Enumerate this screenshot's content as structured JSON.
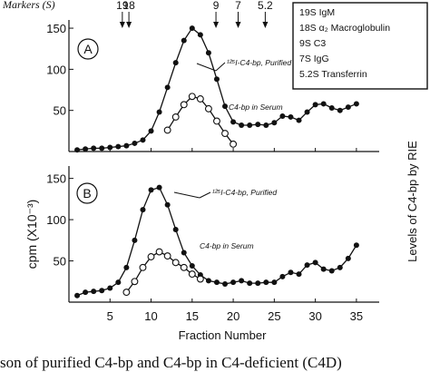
{
  "markers": {
    "title": "Markers (S)",
    "items": [
      {
        "label": "19",
        "x": 6.5
      },
      {
        "label": "18",
        "x": 7.3
      },
      {
        "label": "9",
        "x": 17.9
      },
      {
        "label": "7",
        "x": 20.6
      },
      {
        "label": "5.2",
        "x": 23.9
      }
    ]
  },
  "legend_box": [
    "19S IgM",
    "18S α₂ Macroglobulin",
    "9S C3",
    "7S IgG",
    "5.2S Transferrin"
  ],
  "y_label": "cpm  (X10⁻³)",
  "right_label": "Levels of C4-bp by RIE",
  "x_label": "Fraction Number",
  "caption": "son of purified C4-bp and C4-bp in C4-deficient (C4D)",
  "chart_data": [
    {
      "type": "line",
      "panel": "A",
      "xlim": [
        0,
        37
      ],
      "ylim": [
        0,
        160
      ],
      "yticks": [
        50,
        100,
        150
      ],
      "xticks": [
        5,
        10,
        15,
        20,
        25,
        30,
        35
      ],
      "annotations": [
        "¹²⁵I-C4-bp, Purified",
        "C4-bp in Serum"
      ],
      "series": [
        {
          "name": "¹²⁵I-C4-bp, Purified",
          "marker": "filled",
          "x": [
            1,
            2,
            3,
            4,
            5,
            6,
            7,
            8,
            9,
            10,
            11,
            12,
            13,
            14,
            15,
            16,
            17,
            18,
            19,
            20,
            21,
            22,
            23,
            24,
            25,
            26,
            27,
            28,
            29,
            30,
            31,
            32,
            33,
            34,
            35
          ],
          "y": [
            2,
            3,
            4,
            4,
            5,
            6,
            7,
            10,
            14,
            25,
            48,
            78,
            108,
            135,
            150,
            142,
            120,
            88,
            55,
            36,
            32,
            32,
            33,
            32,
            35,
            43,
            42,
            38,
            48,
            57,
            58,
            53,
            50,
            54,
            58
          ]
        },
        {
          "name": "C4-bp in Serum",
          "marker": "open",
          "x": [
            12,
            13,
            14,
            15,
            16,
            17,
            18,
            19,
            20
          ],
          "y": [
            26,
            42,
            57,
            67,
            64,
            52,
            37,
            22,
            9
          ]
        }
      ]
    },
    {
      "type": "line",
      "panel": "B",
      "xlim": [
        0,
        37
      ],
      "ylim": [
        0,
        165
      ],
      "yticks": [
        50,
        100,
        150
      ],
      "xticks": [
        5,
        10,
        15,
        20,
        25,
        30,
        35
      ],
      "annotations": [
        "¹²⁵I-C4-bp, Purified",
        "C4-bp in Serum"
      ],
      "series": [
        {
          "name": "¹²⁵I-C4-bp, Purified",
          "marker": "filled",
          "x": [
            1,
            2,
            3,
            4,
            5,
            6,
            7,
            8,
            9,
            10,
            11,
            12,
            13,
            14,
            15,
            16,
            17,
            18,
            19,
            20,
            21,
            22,
            23,
            24,
            25,
            26,
            27,
            28,
            29,
            30,
            31,
            32,
            33,
            34,
            35
          ],
          "y": [
            8,
            12,
            13,
            14,
            17,
            24,
            42,
            75,
            112,
            136,
            139,
            118,
            88,
            60,
            44,
            33,
            26,
            24,
            22,
            24,
            26,
            23,
            23,
            24,
            24,
            31,
            36,
            34,
            45,
            48,
            40,
            38,
            42,
            53,
            69
          ]
        },
        {
          "name": "C4-bp in Serum",
          "marker": "open",
          "x": [
            7,
            8,
            9,
            10,
            11,
            12,
            13,
            14,
            15,
            16
          ],
          "y": [
            12,
            25,
            42,
            55,
            61,
            56,
            48,
            42,
            34,
            28
          ]
        }
      ]
    }
  ]
}
